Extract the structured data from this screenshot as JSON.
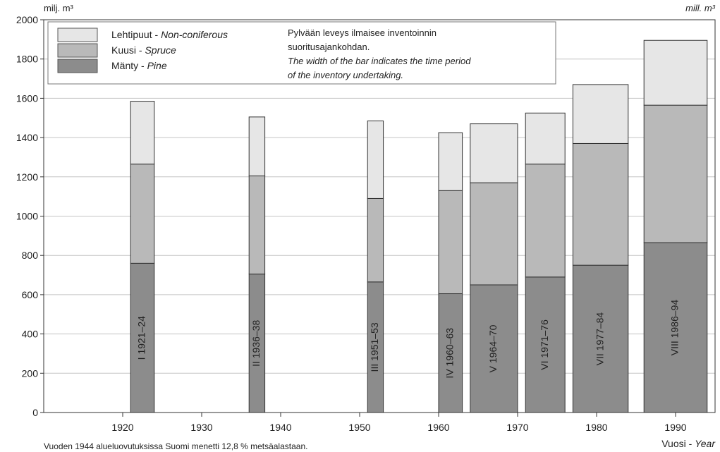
{
  "chart_data": {
    "type": "bar",
    "title": "",
    "ylabel_left": "milj. m³",
    "ylabel_right": "mill. m³",
    "xlabel_fi": "Vuosi -",
    "xlabel_en": "Year",
    "ylim": [
      0,
      2000
    ],
    "xlim": [
      1910,
      1995
    ],
    "yticks": [
      "0",
      "200",
      "400",
      "600",
      "800",
      "1000",
      "1200",
      "1400",
      "1600",
      "1800",
      "2000"
    ],
    "xticks": [
      "1920",
      "1930",
      "1940",
      "1950",
      "1960",
      "1970",
      "1980",
      "1990"
    ],
    "stacked": true,
    "legend_position": "top-left",
    "legend": [
      {
        "fi": "Lehtipuut -",
        "en": "Non-coniferous",
        "color": "#e6e6e6"
      },
      {
        "fi": "Kuusi -",
        "en": "Spruce",
        "color": "#b9b9b9"
      },
      {
        "fi": "Mänty -",
        "en": "Pine",
        "color": "#8c8c8c"
      }
    ],
    "note_fi": "Pylvään leveys ilmaisee inventoinnin suoritusajankohdan.",
    "note_en": "The width of the bar indicates the time period of the inventory undertaking.",
    "footnote": "Vuoden 1944 alueluovutuksissa Suomi menetti 12,8 % metsäalastaan.",
    "series": [
      {
        "name": "Mänty - Pine",
        "values": [
          760,
          705,
          665,
          605,
          650,
          690,
          750,
          865
        ]
      },
      {
        "name": "Kuusi - Spruce",
        "values": [
          505,
          500,
          425,
          525,
          520,
          575,
          620,
          700
        ]
      },
      {
        "name": "Lehtipuut - Non-coniferous",
        "values": [
          320,
          300,
          395,
          295,
          300,
          260,
          300,
          330
        ]
      }
    ],
    "bars": [
      {
        "label": "I 1921–24",
        "x_start": 1921,
        "x_end": 1924
      },
      {
        "label": "II 1936–38",
        "x_start": 1936,
        "x_end": 1938
      },
      {
        "label": "III 1951–53",
        "x_start": 1951,
        "x_end": 1953
      },
      {
        "label": "IV 1960–63",
        "x_start": 1960,
        "x_end": 1963
      },
      {
        "label": "V 1964–70",
        "x_start": 1964,
        "x_end": 1970
      },
      {
        "label": "VI 1971–76",
        "x_start": 1971,
        "x_end": 1976
      },
      {
        "label": "VII 1977–84",
        "x_start": 1977,
        "x_end": 1984
      },
      {
        "label": "VIII 1986–94",
        "x_start": 1986,
        "x_end": 1994
      }
    ]
  }
}
